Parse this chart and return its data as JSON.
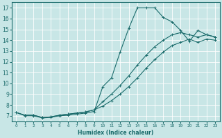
{
  "xlabel": "Humidex (Indice chaleur)",
  "bg_color": "#c8e6e6",
  "grid_color": "#b0d8d8",
  "line_color": "#1a6b6b",
  "xlim": [
    -0.5,
    23.5
  ],
  "ylim": [
    6.5,
    17.5
  ],
  "yticks": [
    7,
    8,
    9,
    10,
    11,
    12,
    13,
    14,
    15,
    16,
    17
  ],
  "xticks": [
    0,
    1,
    2,
    3,
    4,
    5,
    6,
    7,
    8,
    9,
    10,
    11,
    12,
    13,
    14,
    15,
    16,
    17,
    18,
    19,
    20,
    21,
    22,
    23
  ],
  "line1_x": [
    0,
    1,
    2,
    3,
    4,
    5,
    6,
    7,
    8,
    9,
    10,
    11,
    12,
    13,
    14,
    15,
    16,
    17,
    18,
    19,
    20,
    21,
    22,
    23
  ],
  "line1_y": [
    7.3,
    7.0,
    7.0,
    6.8,
    6.85,
    7.0,
    7.05,
    7.15,
    7.25,
    7.4,
    9.7,
    10.5,
    12.9,
    15.1,
    17.0,
    17.0,
    17.0,
    16.1,
    15.7,
    14.9,
    13.9,
    14.9,
    14.5,
    14.3
  ],
  "line2_x": [
    0,
    1,
    2,
    3,
    4,
    5,
    6,
    7,
    8,
    9,
    10,
    11,
    12,
    13,
    14,
    15,
    16,
    17,
    18,
    19,
    20,
    21,
    22,
    23
  ],
  "line2_y": [
    7.3,
    7.05,
    7.05,
    6.85,
    6.9,
    7.05,
    7.15,
    7.25,
    7.35,
    7.55,
    8.3,
    9.0,
    9.8,
    10.7,
    11.7,
    12.6,
    13.4,
    14.0,
    14.5,
    14.7,
    14.5,
    14.3,
    14.5,
    14.3
  ],
  "line3_x": [
    0,
    1,
    2,
    3,
    4,
    5,
    6,
    7,
    8,
    9,
    10,
    11,
    12,
    13,
    14,
    15,
    16,
    17,
    18,
    19,
    20,
    21,
    22,
    23
  ],
  "line3_y": [
    7.3,
    7.05,
    7.05,
    6.85,
    6.9,
    7.05,
    7.15,
    7.25,
    7.35,
    7.55,
    7.9,
    8.4,
    9.0,
    9.7,
    10.5,
    11.4,
    12.2,
    12.9,
    13.5,
    13.8,
    14.1,
    13.8,
    14.1,
    14.0
  ]
}
